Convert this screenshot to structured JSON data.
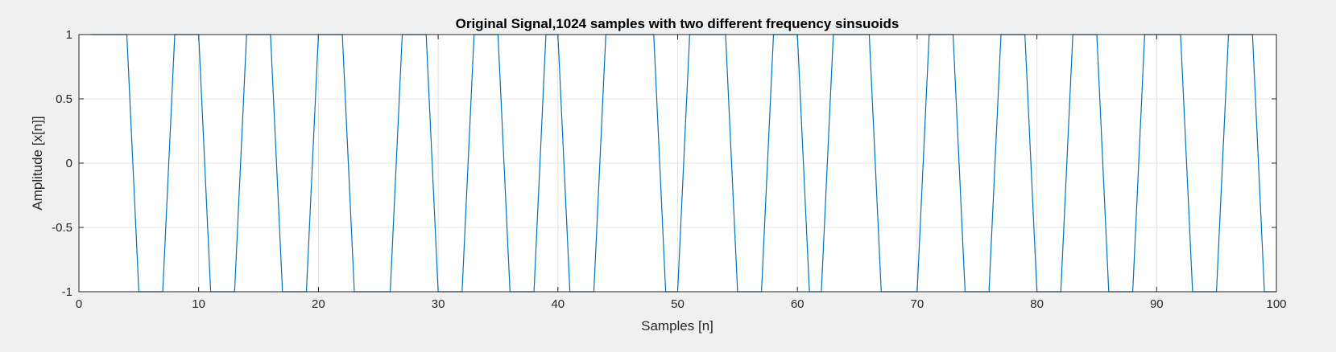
{
  "chart_data": {
    "type": "line",
    "title": "Original Signal,1024 samples with two different frequency sinsuoids",
    "xlabel": "Samples [n]",
    "ylabel": "Amplitude [x[n]]",
    "xlim": [
      0,
      100
    ],
    "ylim": [
      -1,
      1
    ],
    "xticks": [
      0,
      10,
      20,
      30,
      40,
      50,
      60,
      70,
      80,
      90,
      100
    ],
    "yticks": [
      -1,
      -0.5,
      0,
      0.5,
      1
    ],
    "xtick_labels": [
      "0",
      "10",
      "20",
      "30",
      "40",
      "50",
      "60",
      "70",
      "80",
      "90",
      "100"
    ],
    "ytick_labels": [
      "-1",
      "-0.5",
      "0",
      "0.5",
      "1"
    ],
    "grid": true,
    "line_color": "#0072BD",
    "series": [
      {
        "x": [
          1,
          2,
          3,
          4,
          5,
          6,
          7,
          8,
          9,
          10,
          11,
          12,
          13,
          14,
          15,
          16,
          17,
          18,
          19,
          20,
          21,
          22,
          23,
          24,
          25,
          26,
          27,
          28,
          29,
          30,
          31,
          32,
          33,
          34,
          35,
          36,
          37,
          38,
          39,
          40,
          41,
          42,
          43,
          44,
          45,
          46,
          47,
          48,
          49,
          50,
          51,
          52,
          53,
          54,
          55,
          56,
          57,
          58,
          59,
          60,
          61,
          62,
          63,
          64,
          65,
          66,
          67,
          68,
          69,
          70,
          71,
          72,
          73,
          74,
          75,
          76,
          77,
          78,
          79,
          80,
          81,
          82,
          83,
          84,
          85,
          86,
          87,
          88,
          89,
          90,
          91,
          92,
          93,
          94,
          95,
          96,
          97,
          98,
          99,
          100
        ],
        "y": [
          1,
          1,
          1,
          1,
          -1,
          -1,
          -1,
          1,
          1,
          1,
          -1,
          -1,
          -1,
          1,
          1,
          1,
          -1,
          -1,
          -1,
          1,
          1,
          1,
          -1,
          -1,
          -1,
          -1,
          1,
          1,
          1,
          -1,
          -1,
          -1,
          1,
          1,
          1,
          -1,
          -1,
          -1,
          1,
          1,
          -1,
          -1,
          -1,
          1,
          1,
          1,
          1,
          1,
          -1,
          -1,
          1,
          1,
          1,
          1,
          -1,
          -1,
          -1,
          1,
          1,
          1,
          -1,
          -1,
          1,
          1,
          1,
          1,
          -1,
          -1,
          -1,
          -1,
          1,
          1,
          1,
          -1,
          -1,
          -1,
          1,
          1,
          1,
          -1,
          -1,
          -1,
          1,
          1,
          1,
          -1,
          -1,
          -1,
          1,
          1,
          1,
          1,
          -1,
          -1,
          -1,
          1,
          1,
          1,
          -1,
          -1
        ]
      }
    ]
  }
}
